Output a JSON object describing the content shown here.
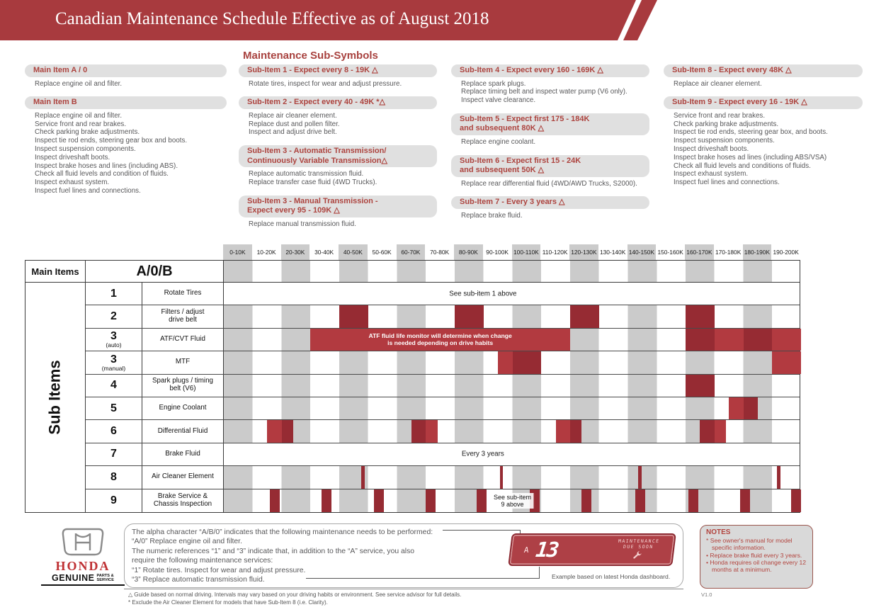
{
  "title": "Canadian Maintenance Schedule Effective as of August 2018",
  "subsymbols_title": "Maintenance Sub-Symbols",
  "info_columns": [
    {
      "blocks": [
        {
          "header_lines": [
            "Main Item A / 0"
          ],
          "body": [
            "Replace engine oil and filter."
          ]
        },
        {
          "header_lines": [
            "Main Item B"
          ],
          "body": [
            "Replace engine oil and filter.",
            "Service front and rear brakes.",
            "Check parking brake adjustments.",
            "Inspect tie rod ends, steering gear box and boots.",
            "Inspect suspension components.",
            "Inspect driveshaft boots.",
            "Inspect brake hoses and lines (including ABS).",
            "Check all fluid levels and condition of fluids.",
            "Inspect exhaust system.",
            "Inspect fuel lines and connections."
          ]
        }
      ]
    },
    {
      "blocks": [
        {
          "header_lines": [
            "Sub-Item 1 - Expect every 8 - 19K △"
          ],
          "body": [
            "Rotate tires, inspect for wear and adjust pressure."
          ]
        },
        {
          "header_lines": [
            "Sub-Item 2 - Expect every 40 - 49K *△"
          ],
          "body": [
            "Replace air cleaner element.",
            "Replace dust and pollen filter.",
            "Inspect and adjust drive belt."
          ]
        },
        {
          "header_lines": [
            "Sub-Item 3 - Automatic Transmission/",
            "Continuously Variable Transmission△"
          ],
          "body": [
            "Replace automatic transmission fluid.",
            "Replace transfer case fluid (4WD Trucks)."
          ]
        },
        {
          "header_lines": [
            "Sub-Item 3 - Manual Transmission -",
            "Expect every 95 - 109K △"
          ],
          "body": [
            "Replace manual transmission fluid."
          ]
        }
      ]
    },
    {
      "blocks": [
        {
          "header_lines": [
            "Sub-Item 4 - Expect every 160 - 169K △"
          ],
          "body": [
            "Replace spark plugs.",
            "Replace timing belt and inspect water pump (V6 only).",
            "Inspect valve clearance."
          ]
        },
        {
          "header_lines": [
            "Sub-Item 5 - Expect first 175 - 184K",
            "and subsequent 80K △"
          ],
          "body": [
            "Replace engine coolant."
          ]
        },
        {
          "header_lines": [
            "Sub-Item 6 - Expect first 15 - 24K",
            "and subsequent 50K △"
          ],
          "body": [
            "Replace rear differential fluid (4WD/AWD Trucks, S2000)."
          ]
        },
        {
          "header_lines": [
            "Sub-Item 7 - Every 3 years △"
          ],
          "body": [
            "Replace brake fluid."
          ]
        }
      ]
    },
    {
      "blocks": [
        {
          "header_lines": [
            "Sub-Item 8 - Expect every 48K △"
          ],
          "body": [
            "Replace air cleaner element."
          ]
        },
        {
          "header_lines": [
            "Sub-Item 9 - Expect every 16 - 19K △"
          ],
          "body": [
            "Service front and rear brakes.",
            "Check parking brake adjustments.",
            "Inspect tie rod ends, steering gear box, and boots.",
            "Inspect suspension components.",
            "Inspect driveshaft boots.",
            "Inspect brake hoses ad lines (including ABS/VSA)",
            "Check all fluid levels and conditions of fluids.",
            "Inspect exhaust system.",
            "Inspect fuel lines and connections."
          ]
        }
      ]
    }
  ],
  "schedule": {
    "main_items_label": "Main Items",
    "main_item_value": "A/0/B",
    "sub_items_label": "Sub Items",
    "columns": [
      "0-10K",
      "10-20K",
      "20-30K",
      "30-40K",
      "40-50K",
      "50-60K",
      "60-70K",
      "70-80K",
      "80-90K",
      "90-100K",
      "100-110K",
      "110-120K",
      "120-130K",
      "130-140K",
      "140-150K",
      "150-160K",
      "160-170K",
      "170-180K",
      "180-190K",
      "190-200K"
    ],
    "rows": [
      {
        "num": "1",
        "label_lines": [
          "Rotate Tires"
        ],
        "striped": false,
        "center_text": "See sub-item 1 above"
      },
      {
        "num": "2",
        "label_lines": [
          "Filters / adjust",
          "drive belt"
        ],
        "striped": true
      },
      {
        "num": "3",
        "num_note": "(auto)",
        "label_lines": [
          "ATF/CVT Fluid"
        ],
        "striped": true,
        "banner": {
          "lines": [
            "ATF fluid life monitor will determine when change",
            "is needed depending on drive habits"
          ],
          "from": 30,
          "to": 120
        }
      },
      {
        "num": "3",
        "num_note": "(manual)",
        "label_lines": [
          "MTF"
        ],
        "striped": true
      },
      {
        "num": "4",
        "label_lines": [
          "Spark plugs / timing",
          "belt (V6)"
        ],
        "striped": true
      },
      {
        "num": "5",
        "label_lines": [
          "Engine Coolant"
        ],
        "striped": true
      },
      {
        "num": "6",
        "label_lines": [
          "Differential Fluid"
        ],
        "striped": true
      },
      {
        "num": "7",
        "label_lines": [
          "Brake Fluid"
        ],
        "striped": false,
        "center_text": "Every 3 years"
      },
      {
        "num": "8",
        "label_lines": [
          "Air Cleaner Element"
        ],
        "striped": true
      },
      {
        "num": "9",
        "label_lines": [
          "Brake Service &",
          "Chassis Inspection"
        ],
        "striped": true,
        "overlay": {
          "lines": [
            "See sub-item",
            "9 above"
          ],
          "centerK": 100
        }
      }
    ],
    "marks": [
      {
        "row": 1,
        "from": 40,
        "to": 50,
        "shade": "dark"
      },
      {
        "row": 1,
        "from": 80,
        "to": 90,
        "shade": "dark"
      },
      {
        "row": 1,
        "from": 120,
        "to": 130,
        "shade": "dark"
      },
      {
        "row": 1,
        "from": 160,
        "to": 170,
        "shade": "dark"
      },
      {
        "row": 2,
        "from": 160,
        "to": 170,
        "shade": "dark"
      },
      {
        "row": 2,
        "from": 170,
        "to": 180,
        "shade": "medium"
      },
      {
        "row": 2,
        "from": 180,
        "to": 190,
        "shade": "dark"
      },
      {
        "row": 2,
        "from": 190,
        "to": 200,
        "shade": "medium"
      },
      {
        "row": 3,
        "from": 95,
        "to": 100,
        "shade": "medium"
      },
      {
        "row": 3,
        "from": 100,
        "to": 110,
        "shade": "dark"
      },
      {
        "row": 3,
        "from": 190,
        "to": 200,
        "shade": "medium"
      },
      {
        "row": 4,
        "from": 160,
        "to": 170,
        "shade": "dark"
      },
      {
        "row": 5,
        "from": 175,
        "to": 180,
        "shade": "medium"
      },
      {
        "row": 5,
        "from": 180,
        "to": 185,
        "shade": "dark"
      },
      {
        "row": 6,
        "from": 15,
        "to": 20,
        "shade": "medium"
      },
      {
        "row": 6,
        "from": 20,
        "to": 24,
        "shade": "dark"
      },
      {
        "row": 6,
        "from": 65,
        "to": 70,
        "shade": "dark"
      },
      {
        "row": 6,
        "from": 70,
        "to": 74,
        "shade": "medium"
      },
      {
        "row": 6,
        "from": 115,
        "to": 120,
        "shade": "medium"
      },
      {
        "row": 6,
        "from": 120,
        "to": 124,
        "shade": "dark"
      },
      {
        "row": 6,
        "from": 165,
        "to": 170,
        "shade": "dark"
      },
      {
        "row": 6,
        "from": 170,
        "to": 174,
        "shade": "medium"
      },
      {
        "row": 8,
        "from": 47.6,
        "to": 48.8,
        "shade": "dark"
      },
      {
        "row": 8,
        "from": 95.6,
        "to": 96.8,
        "shade": "dark"
      },
      {
        "row": 8,
        "from": 143.6,
        "to": 144.8,
        "shade": "dark"
      },
      {
        "row": 8,
        "from": 191.6,
        "to": 192.8,
        "shade": "dark"
      },
      {
        "row": 9,
        "from": 16,
        "to": 19.4,
        "shade": "dark"
      },
      {
        "row": 9,
        "from": 33.8,
        "to": 37.2,
        "shade": "dark"
      },
      {
        "row": 9,
        "from": 52,
        "to": 55.4,
        "shade": "dark"
      },
      {
        "row": 9,
        "from": 70,
        "to": 73.4,
        "shade": "dark"
      },
      {
        "row": 9,
        "from": 87.6,
        "to": 91,
        "shade": "dark"
      },
      {
        "row": 9,
        "from": 106,
        "to": 109.4,
        "shade": "dark"
      },
      {
        "row": 9,
        "from": 124,
        "to": 127.4,
        "shade": "dark"
      },
      {
        "row": 9,
        "from": 142.6,
        "to": 146,
        "shade": "dark"
      },
      {
        "row": 9,
        "from": 161,
        "to": 164.4,
        "shade": "dark"
      },
      {
        "row": 9,
        "from": 179,
        "to": 182.4,
        "shade": "dark"
      },
      {
        "row": 9,
        "from": 196.6,
        "to": 200,
        "shade": "dark"
      }
    ]
  },
  "legend": {
    "lines": [
      "The alpha character “A/B/0” indicates that the following maintenance needs to be performed:",
      "“A/0” Replace engine oil and filter.",
      "The numeric references “1” and “3” indicate that, in addition to the “A” service, you also",
      "require the following maintenance services:",
      "“1” Rotate tires. Inspect for wear and adjust pressure.",
      "“3” Replace automatic transmission fluid."
    ]
  },
  "dashboard": {
    "gear": "A",
    "code": "13",
    "status_line1": "MAINTENANCE",
    "status_line2": "DUE SOON",
    "caption": "Example based on latest Honda dashboard."
  },
  "notes": {
    "title": "NOTES",
    "items": [
      {
        "bullet": "*",
        "text": "See owner's manual for model specific information."
      },
      {
        "bullet": "•",
        "text": "Replace brake fluid every 3 years."
      },
      {
        "bullet": "•",
        "text": "Honda requires oil change every 12 months at a minimum."
      }
    ]
  },
  "footnotes": [
    "△ Guide based on normal driving. Intervals may vary based on your driving habits or environment. See service advisor for full details.",
    "* Exclude the Air Cleaner Element for models that have Sub-Item 8 (i.e. Clarity)."
  ],
  "honda": {
    "wordmark": "HONDA",
    "genuine": "GENUINE",
    "parts": "PARTS &",
    "service": "SERVICE"
  },
  "version": "V1.0"
}
